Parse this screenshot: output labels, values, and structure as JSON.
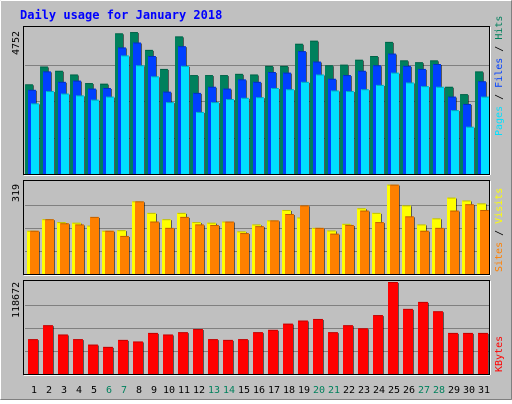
{
  "colors": {
    "background": "#c0c0c0",
    "title": "#0000ff",
    "hits": "#00805c",
    "files": "#0040ff",
    "pages": "#00e0ff",
    "visits": "#ffff00",
    "sites": "#ff8000",
    "kbytes": "#ff0000",
    "weekend_label": "#00805c"
  },
  "chart_data": {
    "title": "Daily usage for January 2018",
    "days": [
      "1",
      "2",
      "3",
      "4",
      "5",
      "6",
      "7",
      "8",
      "9",
      "10",
      "11",
      "12",
      "13",
      "14",
      "15",
      "16",
      "17",
      "18",
      "19",
      "20",
      "21",
      "22",
      "23",
      "24",
      "25",
      "26",
      "27",
      "28",
      "29",
      "30",
      "31"
    ],
    "weekend_days": [
      "6",
      "7",
      "13",
      "14",
      "20",
      "21",
      "27",
      "28"
    ],
    "panels": [
      {
        "type": "bar",
        "axis_max_label": "4752",
        "ylim": [
          0,
          4752
        ],
        "legend": [
          "Pages",
          "Files",
          "Hits"
        ],
        "series": [
          {
            "name": "Hits",
            "values": [
              2920,
              3500,
              3360,
              3240,
              2960,
              2940,
              4580,
              4620,
              4040,
              3420,
              4480,
              3220,
              3220,
              3220,
              3260,
              3240,
              3520,
              3520,
              4240,
              4340,
              3540,
              3560,
              3720,
              3840,
              4300,
              3700,
              3640,
              3700,
              2840,
              2600,
              3340
            ]
          },
          {
            "name": "Files",
            "values": [
              2740,
              3340,
              3000,
              3040,
              2780,
              2800,
              4120,
              4280,
              3840,
              2680,
              4160,
              2640,
              2840,
              2780,
              3080,
              3000,
              3320,
              3300,
              4000,
              3660,
              3100,
              3220,
              3360,
              3540,
              3920,
              3520,
              3420,
              3580,
              2520,
              2280,
              3020
            ]
          },
          {
            "name": "Pages",
            "values": [
              2300,
              2700,
              2620,
              2560,
              2420,
              2520,
              3860,
              3540,
              3180,
              2340,
              3520,
              2020,
              2340,
              2440,
              2480,
              2500,
              2800,
              2760,
              3000,
              3240,
              2720,
              2700,
              2760,
              2900,
              3300,
              2980,
              2860,
              2840,
              2080,
              1540,
              2520
            ]
          }
        ]
      },
      {
        "type": "bar",
        "axis_max_label": "319",
        "ylim": [
          0,
          319
        ],
        "legend": [
          "Sites",
          "Visits"
        ],
        "series": [
          {
            "name": "Visits",
            "values": [
              150,
              190,
              180,
              178,
              168,
              150,
              152,
              252,
              212,
              190,
              212,
              180,
              178,
              182,
              148,
              172,
              186,
              222,
              196,
              160,
              151,
              174,
              228,
              212,
              310,
              238,
              172,
              193,
              265,
              255,
              245
            ]
          },
          {
            "name": "Sites",
            "values": [
              150,
              190,
              176,
              172,
              198,
              150,
              132,
              252,
              182,
              160,
              198,
              172,
              170,
              182,
              142,
              166,
              186,
              208,
              238,
              160,
              140,
              170,
              220,
              180,
              310,
              200,
              150,
              160,
              220,
              242,
              222
            ]
          }
        ]
      },
      {
        "type": "bar",
        "axis_max_label": "118672",
        "ylim": [
          0,
          118672
        ],
        "legend": [
          "KBytes"
        ],
        "series": [
          {
            "name": "KBytes",
            "values": [
              45000,
              63000,
              51000,
              45000,
              38000,
              35000,
              44000,
              42000,
              53000,
              51000,
              54000,
              58000,
              45000,
              44000,
              45000,
              54000,
              57000,
              65000,
              69000,
              71000,
              54000,
              63000,
              59000,
              76000,
              118672,
              84000,
              93000,
              81000,
              53000,
              53000,
              53000
            ]
          }
        ]
      }
    ]
  }
}
